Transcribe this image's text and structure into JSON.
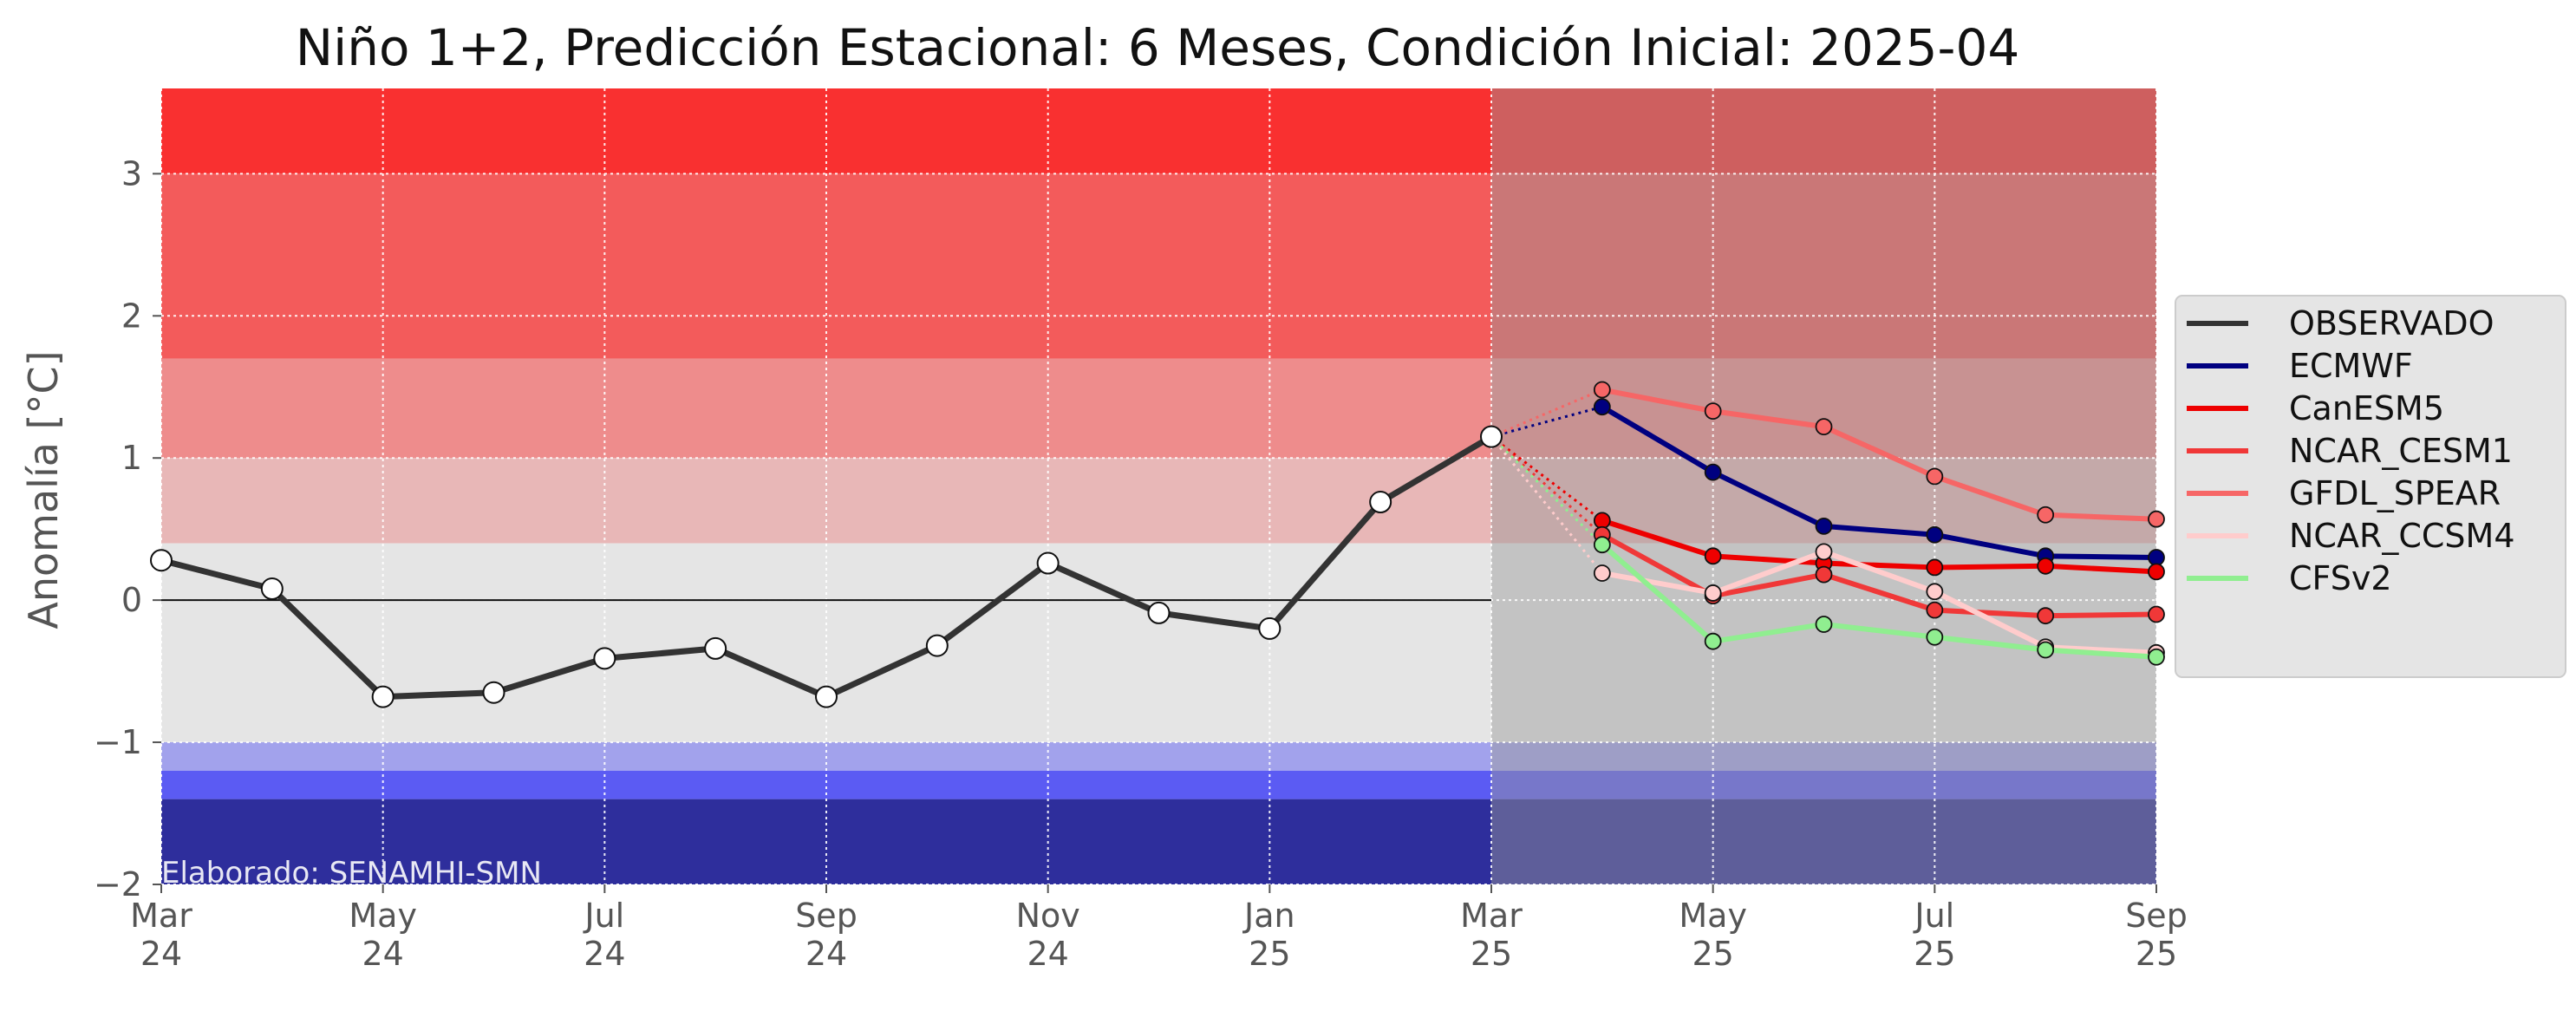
{
  "chart_data": {
    "type": "line",
    "title": "Niño 1+2, Predicción Estacional: 6 Meses, Condición Inicial: 2025-04",
    "ylabel": "Anomalía [°C]",
    "xlabel": "",
    "ylim": [
      -2,
      3.6
    ],
    "yticks": [
      -2,
      -1,
      0,
      1,
      2,
      3
    ],
    "ytick_labels": [
      "−2",
      "−1",
      "0",
      "1",
      "2",
      "3"
    ],
    "x_range": [
      "2024-03",
      "2025-09"
    ],
    "x_ticks": [
      {
        "month": "2024-03",
        "label": [
          "Mar",
          "24"
        ]
      },
      {
        "month": "2024-05",
        "label": [
          "May",
          "24"
        ]
      },
      {
        "month": "2024-07",
        "label": [
          "Jul",
          "24"
        ]
      },
      {
        "month": "2024-09",
        "label": [
          "Sep",
          "24"
        ]
      },
      {
        "month": "2024-11",
        "label": [
          "Nov",
          "24"
        ]
      },
      {
        "month": "2025-01",
        "label": [
          "Jan",
          "25"
        ]
      },
      {
        "month": "2025-03",
        "label": [
          "Mar",
          "25"
        ]
      },
      {
        "month": "2025-05",
        "label": [
          "May",
          "25"
        ]
      },
      {
        "month": "2025-07",
        "label": [
          "Jul",
          "25"
        ]
      },
      {
        "month": "2025-09",
        "label": [
          "Sep",
          "25"
        ]
      }
    ],
    "grid": true,
    "legend_position": "right",
    "credit": "Elaborado: SENAMHI-SMN",
    "forecast_start": "2025-03",
    "category_bands": [
      {
        "from": 3.0,
        "to": 3.6,
        "color": "#f93030"
      },
      {
        "from": 1.7,
        "to": 3.0,
        "color": "#f35b5b"
      },
      {
        "from": 1.0,
        "to": 1.7,
        "color": "#ee8c8c"
      },
      {
        "from": 0.4,
        "to": 1.0,
        "color": "#e8b7b7"
      },
      {
        "from": -1.0,
        "to": 0.4,
        "color": "#e5e5e5"
      },
      {
        "from": -1.2,
        "to": -1.0,
        "color": "#a2a2ec"
      },
      {
        "from": -1.4,
        "to": -1.2,
        "color": "#5b5bf3"
      },
      {
        "from": -2.0,
        "to": -1.4,
        "color": "#2e2e9c"
      }
    ],
    "series": [
      {
        "name": "OBSERVADO",
        "color": "#333333",
        "points": [
          {
            "x": "2024-03",
            "y": 0.28
          },
          {
            "x": "2024-04",
            "y": 0.08
          },
          {
            "x": "2024-05",
            "y": -0.68
          },
          {
            "x": "2024-06",
            "y": -0.65
          },
          {
            "x": "2024-07",
            "y": -0.41
          },
          {
            "x": "2024-08",
            "y": -0.34
          },
          {
            "x": "2024-09",
            "y": -0.68
          },
          {
            "x": "2024-10",
            "y": -0.32
          },
          {
            "x": "2024-11",
            "y": 0.26
          },
          {
            "x": "2024-12",
            "y": -0.09
          },
          {
            "x": "2025-01",
            "y": -0.2
          },
          {
            "x": "2025-02",
            "y": 0.69
          },
          {
            "x": "2025-03",
            "y": 1.15
          }
        ]
      },
      {
        "name": "ECMWF",
        "color": "#000080",
        "points": [
          {
            "x": "2025-04",
            "y": 1.36
          },
          {
            "x": "2025-05",
            "y": 0.9
          },
          {
            "x": "2025-06",
            "y": 0.52
          },
          {
            "x": "2025-07",
            "y": 0.46
          },
          {
            "x": "2025-08",
            "y": 0.31
          },
          {
            "x": "2025-09",
            "y": 0.3
          }
        ]
      },
      {
        "name": "CanESM5",
        "color": "#ee0000",
        "points": [
          {
            "x": "2025-04",
            "y": 0.56
          },
          {
            "x": "2025-05",
            "y": 0.31
          },
          {
            "x": "2025-06",
            "y": 0.26
          },
          {
            "x": "2025-07",
            "y": 0.23
          },
          {
            "x": "2025-08",
            "y": 0.24
          },
          {
            "x": "2025-09",
            "y": 0.2
          }
        ]
      },
      {
        "name": "NCAR_CESM1",
        "color": "#f03838",
        "points": [
          {
            "x": "2025-04",
            "y": 0.46
          },
          {
            "x": "2025-05",
            "y": 0.03
          },
          {
            "x": "2025-06",
            "y": 0.18
          },
          {
            "x": "2025-07",
            "y": -0.07
          },
          {
            "x": "2025-08",
            "y": -0.11
          },
          {
            "x": "2025-09",
            "y": -0.1
          }
        ]
      },
      {
        "name": "GFDL_SPEAR",
        "color": "#f66666",
        "points": [
          {
            "x": "2025-04",
            "y": 1.48
          },
          {
            "x": "2025-05",
            "y": 1.33
          },
          {
            "x": "2025-06",
            "y": 1.22
          },
          {
            "x": "2025-07",
            "y": 0.87
          },
          {
            "x": "2025-08",
            "y": 0.6
          },
          {
            "x": "2025-09",
            "y": 0.57
          }
        ]
      },
      {
        "name": "NCAR_CCSM4",
        "color": "#ffcccc",
        "points": [
          {
            "x": "2025-04",
            "y": 0.19
          },
          {
            "x": "2025-05",
            "y": 0.05
          },
          {
            "x": "2025-06",
            "y": 0.34
          },
          {
            "x": "2025-07",
            "y": 0.06
          },
          {
            "x": "2025-08",
            "y": -0.33
          },
          {
            "x": "2025-09",
            "y": -0.37
          }
        ]
      },
      {
        "name": "CFSv2",
        "color": "#90ee90",
        "points": [
          {
            "x": "2025-04",
            "y": 0.39
          },
          {
            "x": "2025-05",
            "y": -0.29
          },
          {
            "x": "2025-06",
            "y": -0.17
          },
          {
            "x": "2025-07",
            "y": -0.26
          },
          {
            "x": "2025-08",
            "y": -0.35
          },
          {
            "x": "2025-09",
            "y": -0.4
          }
        ]
      }
    ]
  }
}
